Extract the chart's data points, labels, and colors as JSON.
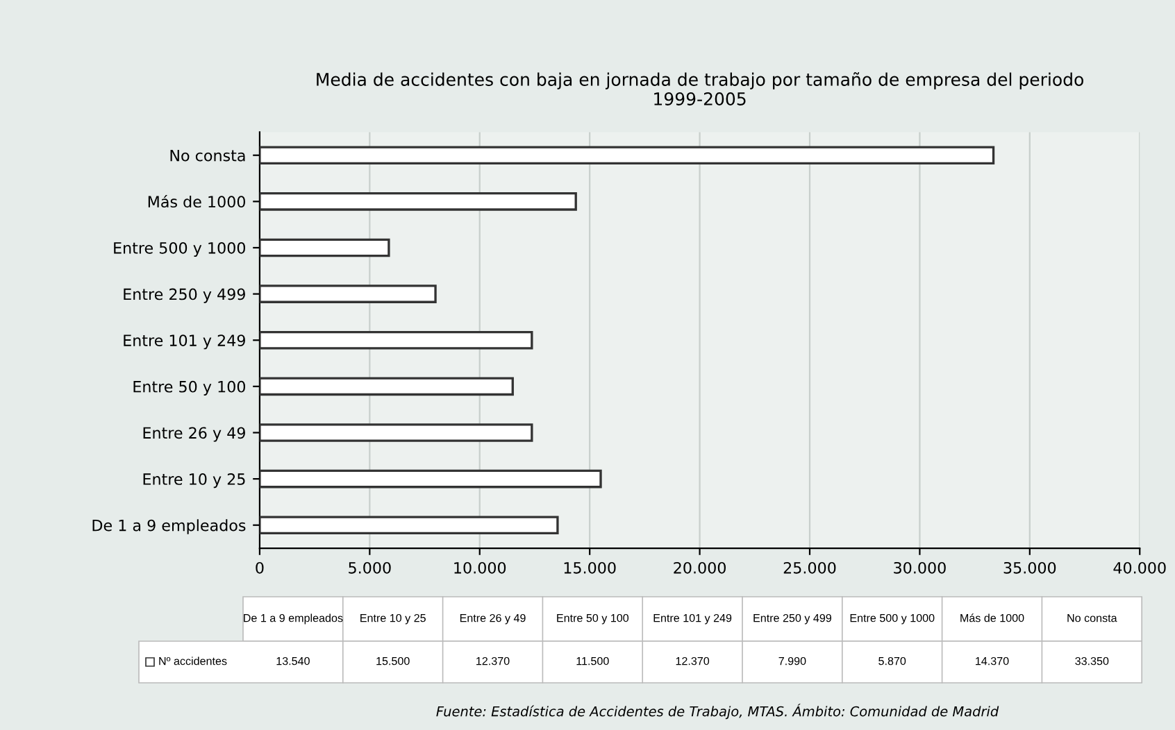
{
  "chart_data": {
    "type": "bar",
    "orientation": "horizontal",
    "title": "Media de accidentes con baja en jornada de trabajo por tamaño de empresa del periodo\n1999-2005",
    "categories": [
      "No consta",
      "Más de 1000",
      "Entre 500 y 1000",
      "Entre 250 y 499",
      "Entre 101 y 249",
      "Entre 50 y 100",
      "Entre 26 y 49",
      "Entre 10 y 25",
      "De 1 a 9 empleados"
    ],
    "series": [
      {
        "name": "Nº accidentes",
        "color": "#ffffff",
        "values": [
          33350,
          14370,
          5870,
          7990,
          12370,
          11500,
          12370,
          15500,
          13540
        ]
      }
    ],
    "xlim": [
      0,
      40000
    ],
    "xticks": [
      0,
      {
        "value": 5000,
        "label": "5.000"
      },
      {
        "value": 10000,
        "label": "10.000"
      },
      {
        "value": 15000,
        "label": "15.000"
      },
      {
        "value": 20000,
        "label": "20.000"
      },
      {
        "value": 25000,
        "label": "25.000"
      },
      {
        "value": 30000,
        "label": "30.000"
      },
      {
        "value": 35000,
        "label": "35.000"
      },
      {
        "value": 40000,
        "label": "40.000"
      }
    ],
    "grid": "x",
    "value_labels": [
      "33.350",
      "14.370",
      "5.870",
      "7.990",
      "12.370",
      "11.500",
      "12.370",
      "15.500",
      "13.540"
    ],
    "annotations": [
      "Fuente: Estadística de Accidentes de Trabajo, MTAS. Ámbito: Comunidad de Madrid"
    ]
  }
}
